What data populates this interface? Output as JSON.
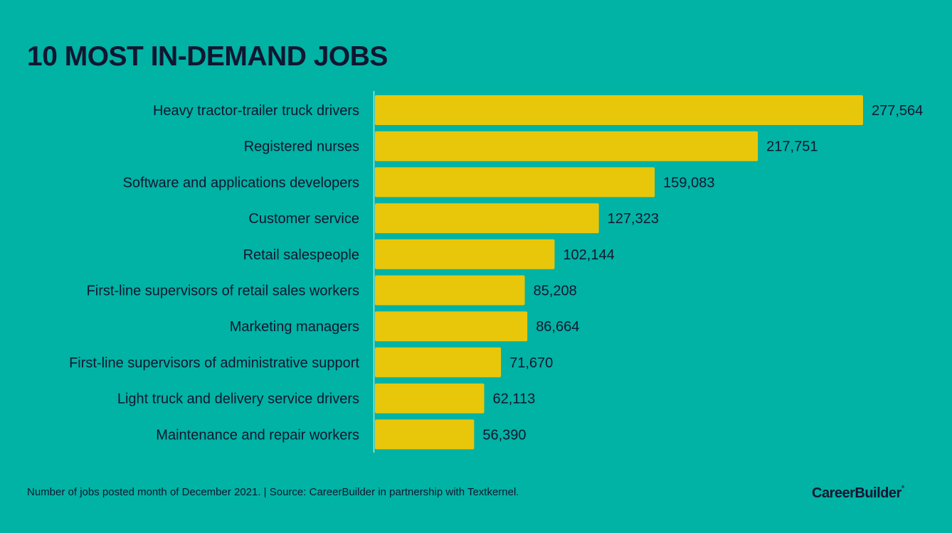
{
  "chart_data": {
    "type": "bar",
    "orientation": "horizontal",
    "title": "10 MOST IN-DEMAND JOBS",
    "categories": [
      "Heavy tractor-trailer truck drivers",
      "Registered nurses",
      "Software and applications developers",
      "Customer service",
      "Retail salespeople",
      "First-line supervisors of retail sales workers",
      "Marketing managers",
      "First-line supervisors of administrative support",
      "Light truck and delivery service drivers",
      "Maintenance and repair workers"
    ],
    "values": [
      277564,
      217751,
      159083,
      127323,
      102144,
      85208,
      86664,
      71670,
      62113,
      56390
    ],
    "value_labels": [
      "277,564",
      "217,751",
      "159,083",
      "127,323",
      "102,144",
      "85,208",
      "86,664",
      "71,670",
      "62,113",
      "56,390"
    ],
    "xlim": [
      0,
      277564
    ],
    "grid": false,
    "legend": "none",
    "colors": {
      "background": "#00b3a4",
      "bar": "#e8c70a",
      "text": "#111631",
      "axis": "#a8e6df"
    }
  },
  "footnote": "Number of jobs posted month of December 2021. | Source: CareerBuilder in partnership with Textkernel.",
  "logo": {
    "text": "CareerBuilder",
    "mark": "®"
  }
}
